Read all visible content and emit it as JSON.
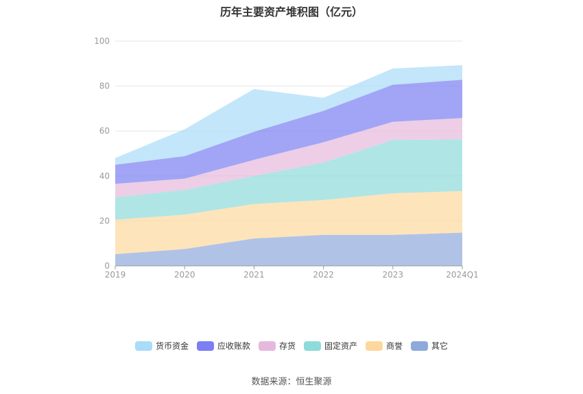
{
  "chart_data": {
    "type": "area",
    "stacked": true,
    "title": "历年主要资产堆积图（亿元）",
    "categories": [
      "2019",
      "2020",
      "2021",
      "2022",
      "2023",
      "2024Q1"
    ],
    "ylim": [
      0,
      100
    ],
    "yticks": [
      "0",
      "20",
      "40",
      "60",
      "80",
      "100"
    ],
    "grid": true,
    "legend_position": "bottom",
    "series": [
      {
        "name": "其它",
        "color": "#8eaadb",
        "values": [
          5.2,
          7.5,
          12.2,
          13.8,
          13.8,
          14.8
        ]
      },
      {
        "name": "商誉",
        "color": "#fdd89c",
        "values": [
          15.3,
          15.3,
          15.3,
          15.5,
          18.5,
          18.5
        ]
      },
      {
        "name": "固定资产",
        "color": "#8fdada",
        "values": [
          10.0,
          11.0,
          12.5,
          16.7,
          23.8,
          23.0
        ]
      },
      {
        "name": "存货",
        "color": "#e6b9dc",
        "values": [
          6.0,
          5.0,
          7.2,
          9.0,
          8.0,
          9.5
        ]
      },
      {
        "name": "应收账款",
        "color": "#7b7ff2",
        "values": [
          8.5,
          10.0,
          12.5,
          14.0,
          16.5,
          17.0
        ]
      },
      {
        "name": "货币资金",
        "color": "#a9dcf8",
        "values": [
          3.0,
          12.0,
          19.0,
          5.8,
          7.2,
          6.5
        ]
      }
    ]
  },
  "legend_order": [
    "货币资金",
    "应收账款",
    "存货",
    "固定资产",
    "商誉",
    "其它"
  ],
  "source_text": "数据来源：恒生聚源"
}
